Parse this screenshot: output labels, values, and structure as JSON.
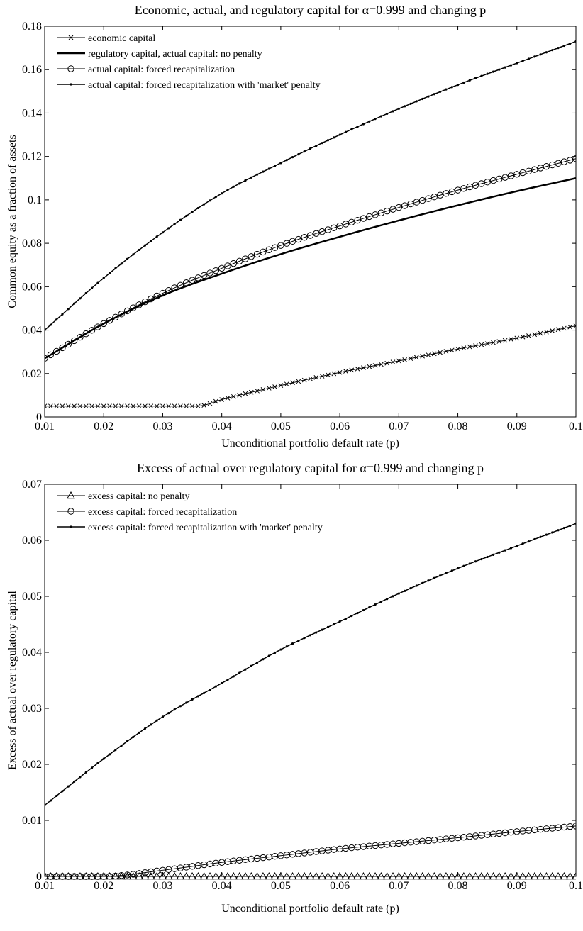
{
  "chart_data": [
    {
      "type": "line",
      "title": "Economic, actual, and regulatory capital for α=0.999 and changing p",
      "xlabel": "Unconditional portfolio default rate (p)",
      "ylabel": "Common equity as a fraction of assets",
      "xlim": [
        0.01,
        0.1
      ],
      "ylim": [
        0,
        0.18
      ],
      "xticks": [
        0.01,
        0.02,
        0.03,
        0.04,
        0.05,
        0.06,
        0.07,
        0.08,
        0.09,
        0.1
      ],
      "xtick_labels": [
        "0.01",
        "0.02",
        "0.03",
        "0.04",
        "0.05",
        "0.06",
        "0.07",
        "0.08",
        "0.09",
        "0.1"
      ],
      "yticks": [
        0,
        0.02,
        0.04,
        0.06,
        0.08,
        0.1,
        0.12,
        0.14,
        0.16,
        0.18
      ],
      "ytick_labels": [
        "0",
        "0.02",
        "0.04",
        "0.06",
        "0.08",
        "0.1",
        "0.12",
        "0.14",
        "0.16",
        "0.18"
      ],
      "grid": false,
      "legend_position": "top-left",
      "x_range": {
        "start": 0.01,
        "end": 0.1,
        "step": 0.001
      },
      "series": [
        {
          "name": "economic capital",
          "marker": "x",
          "line_width": 1,
          "anchors_x": [
            0.01,
            0.036,
            0.04,
            0.05,
            0.06,
            0.07,
            0.08,
            0.09,
            0.1
          ],
          "anchors_y": [
            0.005,
            0.005,
            0.008,
            0.0145,
            0.0205,
            0.0258,
            0.0313,
            0.0363,
            0.042
          ]
        },
        {
          "name": "regulatory capital, actual capital: no penalty",
          "marker": "none",
          "line_width": 2.5,
          "anchors_x": [
            0.01,
            0.02,
            0.03,
            0.04,
            0.05,
            0.06,
            0.07,
            0.08,
            0.09,
            0.1
          ],
          "anchors_y": [
            0.027,
            0.043,
            0.056,
            0.066,
            0.075,
            0.083,
            0.0905,
            0.0975,
            0.104,
            0.11
          ]
        },
        {
          "name": "actual capital: forced recapitalization",
          "marker": "o",
          "line_width": 1,
          "anchors_x": [
            0.01,
            0.02,
            0.03,
            0.04,
            0.05,
            0.06,
            0.07,
            0.08,
            0.09,
            0.1
          ],
          "anchors_y": [
            0.027,
            0.043,
            0.057,
            0.0685,
            0.079,
            0.088,
            0.0965,
            0.1045,
            0.1118,
            0.119
          ]
        },
        {
          "name": "actual capital: forced recapitalization with 'market' penalty",
          "marker": "dot",
          "line_width": 1.5,
          "anchors_x": [
            0.01,
            0.02,
            0.03,
            0.04,
            0.05,
            0.06,
            0.07,
            0.08,
            0.09,
            0.1
          ],
          "anchors_y": [
            0.04,
            0.064,
            0.085,
            0.103,
            0.117,
            0.13,
            0.142,
            0.153,
            0.163,
            0.173
          ]
        }
      ]
    },
    {
      "type": "line",
      "title": "Excess of actual over regulatory capital for α=0.999 and changing p",
      "xlabel": "Unconditional portfolio default rate (p)",
      "ylabel": "Excess of actual over regulatory capital",
      "xlim": [
        0.01,
        0.1
      ],
      "ylim": [
        0,
        0.07
      ],
      "xticks": [
        0.01,
        0.02,
        0.03,
        0.04,
        0.05,
        0.06,
        0.07,
        0.08,
        0.09,
        0.1
      ],
      "xtick_labels": [
        "0.01",
        "0.02",
        "0.03",
        "0.04",
        "0.05",
        "0.06",
        "0.07",
        "0.08",
        "0.09",
        "0.1"
      ],
      "yticks": [
        0,
        0.01,
        0.02,
        0.03,
        0.04,
        0.05,
        0.06,
        0.07
      ],
      "ytick_labels": [
        "0",
        "0.01",
        "0.02",
        "0.03",
        "0.04",
        "0.05",
        "0.06",
        "0.07"
      ],
      "grid": false,
      "legend_position": "top-left",
      "x_range": {
        "start": 0.01,
        "end": 0.1,
        "step": 0.001
      },
      "series": [
        {
          "name": "excess capital: no penalty",
          "marker": "triangle",
          "line_width": 1,
          "anchors_x": [
            0.01,
            0.1
          ],
          "anchors_y": [
            0,
            0
          ]
        },
        {
          "name": "excess capital: forced recapitalization",
          "marker": "o",
          "line_width": 1,
          "anchors_x": [
            0.01,
            0.02,
            0.03,
            0.04,
            0.05,
            0.06,
            0.07,
            0.08,
            0.09,
            0.1
          ],
          "anchors_y": [
            0,
            0,
            0.0011,
            0.0025,
            0.0037,
            0.0049,
            0.0059,
            0.0069,
            0.008,
            0.009
          ]
        },
        {
          "name": "excess capital: forced recapitalization with 'market' penalty",
          "marker": "dot",
          "line_width": 1.5,
          "anchors_x": [
            0.01,
            0.02,
            0.03,
            0.04,
            0.05,
            0.06,
            0.07,
            0.08,
            0.09,
            0.1
          ],
          "anchors_y": [
            0.0127,
            0.021,
            0.0285,
            0.0345,
            0.0405,
            0.0455,
            0.0505,
            0.055,
            0.059,
            0.063
          ]
        }
      ]
    }
  ]
}
